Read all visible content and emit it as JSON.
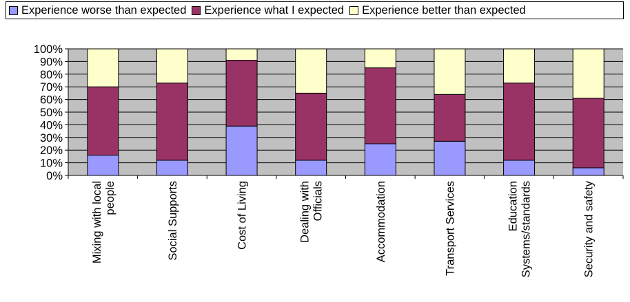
{
  "chart_data": {
    "type": "bar",
    "stacked": true,
    "percent": true,
    "categories": [
      "Mixing with local people",
      "Social Supports",
      "Cost of Living",
      "Dealing with Officials",
      "Accommodation",
      "Transport Services",
      "Education Systems/standards",
      "Security and safety"
    ],
    "category_lines": [
      [
        "Mixing with local",
        "people"
      ],
      [
        "Social Supports"
      ],
      [
        "Cost of Living"
      ],
      [
        "Dealing with",
        "Officials"
      ],
      [
        "Accommodation"
      ],
      [
        "Transport Services"
      ],
      [
        "Education",
        "Systems/standards"
      ],
      [
        "Security and safety"
      ]
    ],
    "series": [
      {
        "name": "Experience worse than expected",
        "color": "#9999ff",
        "values": [
          16,
          12,
          39,
          12,
          25,
          27,
          12,
          6
        ]
      },
      {
        "name": "Experience what I expected",
        "color": "#993366",
        "values": [
          54,
          61,
          52,
          53,
          60,
          37,
          61,
          55
        ]
      },
      {
        "name": "Experience better than expected",
        "color": "#ffffcc",
        "values": [
          30,
          27,
          9,
          35,
          15,
          36,
          27,
          39
        ]
      }
    ],
    "ylim": [
      0,
      100
    ],
    "yticks": [
      "0%",
      "10%",
      "20%",
      "30%",
      "40%",
      "50%",
      "60%",
      "70%",
      "80%",
      "90%",
      "100%"
    ],
    "grid": true,
    "plot_background": "#c0c0c0",
    "legend_position": "top"
  }
}
